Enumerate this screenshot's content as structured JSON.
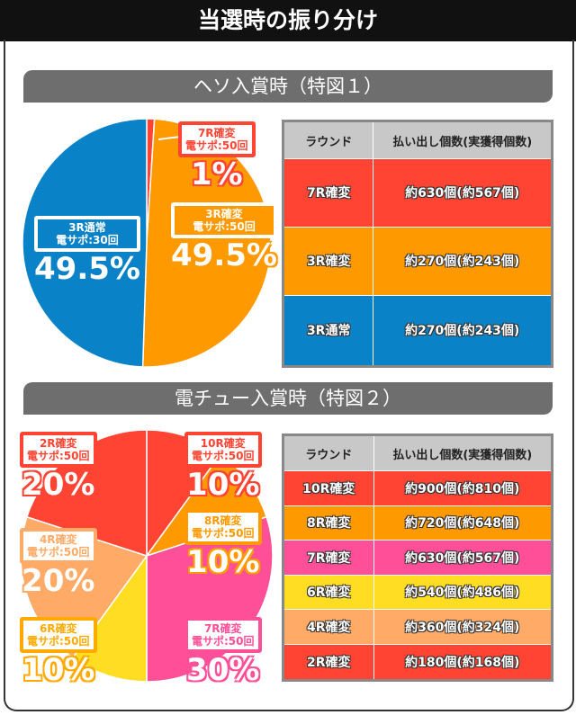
{
  "title": "当選時の振り分け",
  "sections": [
    {
      "heading": "ヘソ入賞時（特図１）",
      "columns": [
        "ラウンド",
        "払い出し個数(実獲得個数)"
      ],
      "slices": [
        {
          "label1": "7R確変",
          "label2": "電サポ:50回",
          "pct": "1%",
          "value": 1,
          "color": "#ff4433"
        },
        {
          "label1": "3R確変",
          "label2": "電サポ:50回",
          "pct": "49.5%",
          "value": 49.5,
          "color": "#ff9900"
        },
        {
          "label1": "3R通常",
          "label2": "電サポ:30回",
          "pct": "49.5%",
          "value": 49.5,
          "color": "#0a82c8"
        }
      ],
      "rows": [
        {
          "round": "7R確変",
          "payout": "約630個(約567個)",
          "color": "#ff4433"
        },
        {
          "round": "3R確変",
          "payout": "約270個(約243個)",
          "color": "#ff9900"
        },
        {
          "round": "3R通常",
          "payout": "約270個(約243個)",
          "color": "#0a82c8"
        }
      ]
    },
    {
      "heading": "電チュー入賞時（特図２）",
      "columns": [
        "ラウンド",
        "払い出し個数(実獲得個数)"
      ],
      "slices": [
        {
          "label1": "10R確変",
          "label2": "電サポ:50回",
          "pct": "10%",
          "value": 10,
          "color": "#ff4433"
        },
        {
          "label1": "8R確変",
          "label2": "電サポ:50回",
          "pct": "10%",
          "value": 10,
          "color": "#ff9900"
        },
        {
          "label1": "7R確変",
          "label2": "電サポ:50回",
          "pct": "30%",
          "value": 30,
          "color": "#ff4f99"
        },
        {
          "label1": "6R確変",
          "label2": "電サポ:50回",
          "pct": "10%",
          "value": 10,
          "color": "#ffdd22"
        },
        {
          "label1": "4R確変",
          "label2": "電サポ:50回",
          "pct": "20%",
          "value": 20,
          "color": "#ffaa66"
        },
        {
          "label1": "2R確変",
          "label2": "電サポ:50回",
          "pct": "20%",
          "value": 20,
          "color": "#ff4433"
        }
      ],
      "rows": [
        {
          "round": "10R確変",
          "payout": "約900個(約810個)",
          "color": "#ff4433"
        },
        {
          "round": "8R確変",
          "payout": "約720個(約648個)",
          "color": "#ff9900"
        },
        {
          "round": "7R確変",
          "payout": "約630個(約567個)",
          "color": "#ff4f99"
        },
        {
          "round": "6R確変",
          "payout": "約540個(約486個)",
          "color": "#ffdd22"
        },
        {
          "round": "4R確変",
          "payout": "約360個(約324個)",
          "color": "#ffaa66"
        },
        {
          "round": "2R確変",
          "payout": "約180個(約168個)",
          "color": "#ff4433"
        }
      ]
    }
  ]
}
